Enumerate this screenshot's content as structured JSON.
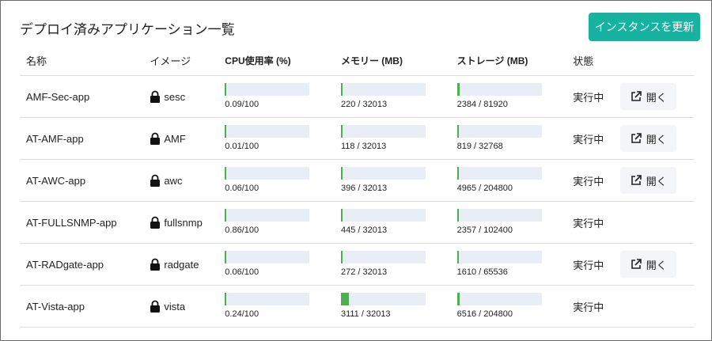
{
  "header": {
    "title": "デプロイ済みアプリケーション一覧",
    "button": "インスタンスを更新"
  },
  "table": {
    "columns": [
      "名称",
      "イメージ",
      "CPU使用率 (%)",
      "メモリー (MB)",
      "ストレージ (MB)",
      "状態"
    ],
    "rows": [
      {
        "name": "AMF-Sec-app",
        "image": "sesc",
        "cpu": {
          "value": 0.09,
          "max": 100,
          "label": "0.09/100"
        },
        "memory": {
          "value": 220,
          "max": 32013,
          "label": "220 / 32013"
        },
        "storage": {
          "value": 2384,
          "max": 81920,
          "label": "2384 / 81920"
        },
        "status": "実行中",
        "action": "開く"
      },
      {
        "name": "AT-AMF-app",
        "image": "AMF",
        "cpu": {
          "value": 0.01,
          "max": 100,
          "label": "0.01/100"
        },
        "memory": {
          "value": 118,
          "max": 32013,
          "label": "118 / 32013"
        },
        "storage": {
          "value": 819,
          "max": 32768,
          "label": "819 / 32768"
        },
        "status": "実行中",
        "action": "開く"
      },
      {
        "name": "AT-AWC-app",
        "image": "awc",
        "cpu": {
          "value": 0.06,
          "max": 100,
          "label": "0.06/100"
        },
        "memory": {
          "value": 396,
          "max": 32013,
          "label": "396 / 32013"
        },
        "storage": {
          "value": 4965,
          "max": 204800,
          "label": "4965 / 204800"
        },
        "status": "実行中",
        "action": "開く"
      },
      {
        "name": "AT-FULLSNMP-app",
        "image": "fullsnmp",
        "cpu": {
          "value": 0.86,
          "max": 100,
          "label": "0.86/100"
        },
        "memory": {
          "value": 445,
          "max": 32013,
          "label": "445 / 32013"
        },
        "storage": {
          "value": 2357,
          "max": 102400,
          "label": "2357 / 102400"
        },
        "status": "実行中"
      },
      {
        "name": "AT-RADgate-app",
        "image": "radgate",
        "cpu": {
          "value": 0.06,
          "max": 100,
          "label": "0.06/100"
        },
        "memory": {
          "value": 272,
          "max": 32013,
          "label": "272 / 32013"
        },
        "storage": {
          "value": 1610,
          "max": 65536,
          "label": "1610 / 65536"
        },
        "status": "実行中",
        "action": "開く"
      },
      {
        "name": "AT-Vista-app",
        "image": "vista",
        "cpu": {
          "value": 0.24,
          "max": 100,
          "label": "0.24/100"
        },
        "memory": {
          "value": 3111,
          "max": 32013,
          "label": "3111 / 32013"
        },
        "storage": {
          "value": 6516,
          "max": 204800,
          "label": "6516 / 204800"
        },
        "status": "実行中"
      }
    ]
  }
}
